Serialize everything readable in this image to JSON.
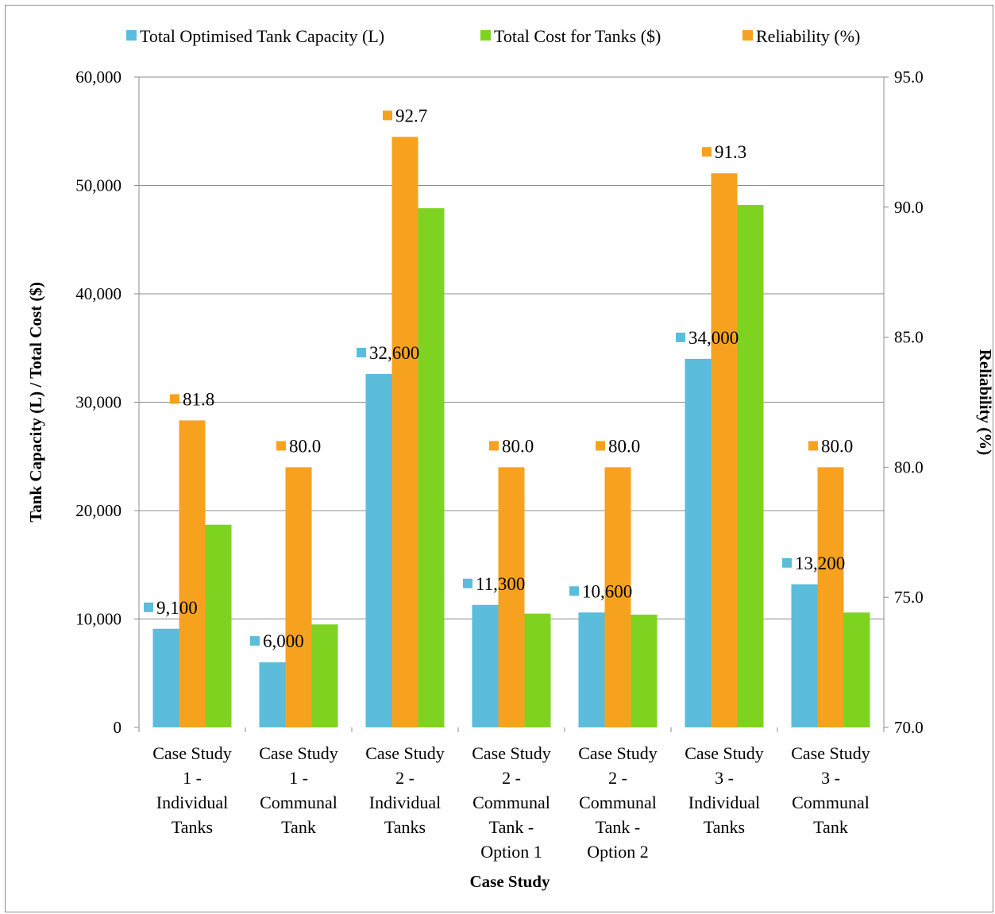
{
  "chart_data": {
    "type": "bar",
    "xlabel": "Case Study",
    "ylabel": "Tank Capacity (L) / Total Cost ($)",
    "y2label": "Reliability (%)",
    "ylim": [
      0,
      60000
    ],
    "y2lim": [
      70,
      95
    ],
    "yticks": [
      "0",
      "10,000",
      "20,000",
      "30,000",
      "40,000",
      "50,000",
      "60,000"
    ],
    "y2ticks": [
      "70.0",
      "75.0",
      "80.0",
      "85.0",
      "90.0",
      "95.0"
    ],
    "grid": true,
    "legend_position": "top",
    "categories": [
      [
        "Case Study",
        "1 -",
        "Individual",
        "Tanks"
      ],
      [
        "Case Study",
        "1 -",
        "Communal",
        "Tank"
      ],
      [
        "Case Study",
        "2 -",
        "Individual",
        "Tanks"
      ],
      [
        "Case Study",
        "2 -",
        "Communal",
        "Tank -",
        "Option 1"
      ],
      [
        "Case Study",
        "2 -",
        "Communal",
        "Tank -",
        "Option 2"
      ],
      [
        "Case Study",
        "3 -",
        "Individual",
        "Tanks"
      ],
      [
        "Case Study",
        "3 -",
        "Communal",
        "Tank"
      ]
    ],
    "series": [
      {
        "name": "Total Optimised Tank Capacity (L)",
        "axis": "left",
        "color": "#5bbcdc",
        "values": [
          9100,
          6000,
          32600,
          11300,
          10600,
          34000,
          13200
        ],
        "labels": [
          "9,100",
          "6,000",
          "32,600",
          "11,300",
          "10,600",
          "34,000",
          "13,200"
        ]
      },
      {
        "name": "Reliability (%)",
        "axis": "right",
        "color": "#f7a21f",
        "values": [
          81.8,
          80.0,
          92.7,
          80.0,
          80.0,
          91.3,
          80.0
        ],
        "labels": [
          "81.8",
          "80.0",
          "92.7",
          "80.0",
          "80.0",
          "91.3",
          "80.0"
        ]
      },
      {
        "name": "Total Cost for Tanks ($)",
        "axis": "left",
        "color": "#7ed321",
        "values": [
          18700,
          9500,
          47900,
          10500,
          10400,
          48200,
          10600
        ],
        "labels": []
      }
    ],
    "legend_order": [
      0,
      2,
      1
    ]
  }
}
